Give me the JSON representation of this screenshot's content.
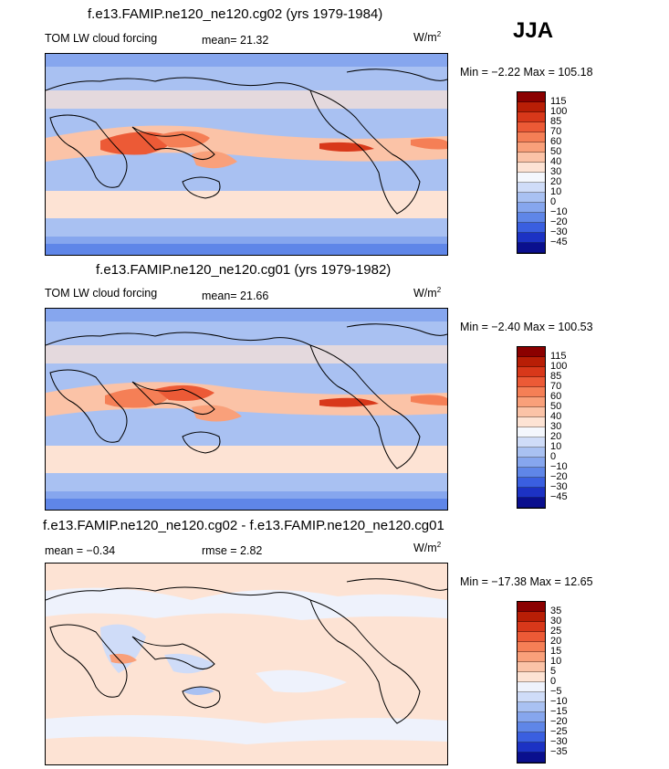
{
  "season": "JJA",
  "panels": [
    {
      "title": "f.e13.FAMIP.ne120_ne120.cg02 (yrs 1979-1984)",
      "left_label": "TOM LW cloud forcing",
      "stat_label": "mean=  21.32",
      "units": "W/m",
      "units_exp": "2",
      "minmax": "Min =  −2.22 Max = 105.18",
      "kind": "field"
    },
    {
      "title": "f.e13.FAMIP.ne120_ne120.cg01 (yrs 1979-1982)",
      "left_label": "TOM LW cloud forcing",
      "stat_label": "mean=  21.66",
      "units": "W/m",
      "units_exp": "2",
      "minmax": "Min =  −2.40 Max = 100.53",
      "kind": "field"
    },
    {
      "title": "f.e13.FAMIP.ne120_ne120.cg02 - f.e13.FAMIP.ne120_ne120.cg01",
      "left_label": "mean =   −0.34",
      "stat_label": "rmse =    2.82",
      "units": "W/m",
      "units_exp": "2",
      "minmax": "Min = −17.38 Max =  12.65",
      "kind": "diff"
    }
  ],
  "colorbars": {
    "field": {
      "levels": [
        "115",
        "100",
        "85",
        "70",
        "60",
        "50",
        "40",
        "30",
        "20",
        "10",
        "0",
        "−10",
        "−20",
        "−30",
        "−45"
      ],
      "colors": [
        "#8b0000",
        "#b81e06",
        "#d8381a",
        "#ec5a36",
        "#f57f56",
        "#f9a07a",
        "#fbc3a7",
        "#fde3d4",
        "#f4f7fd",
        "#cfdcf8",
        "#a9c1f2",
        "#86a6ee",
        "#5f86e8",
        "#3a5fe0",
        "#1c32c4",
        "#0a0f8e"
      ]
    },
    "diff": {
      "levels": [
        "35",
        "30",
        "25",
        "20",
        "15",
        "10",
        "5",
        "0",
        "−5",
        "−10",
        "−15",
        "−20",
        "−25",
        "−30",
        "−35"
      ],
      "colors": [
        "#8b0000",
        "#b81e06",
        "#d8381a",
        "#ec5a36",
        "#f57f56",
        "#f9a07a",
        "#fbc3a7",
        "#fde3d4",
        "#eef2fc",
        "#cfdcf8",
        "#a9c1f2",
        "#86a6ee",
        "#5f86e8",
        "#3a5fe0",
        "#1c32c4",
        "#0a0f8e"
      ]
    }
  }
}
